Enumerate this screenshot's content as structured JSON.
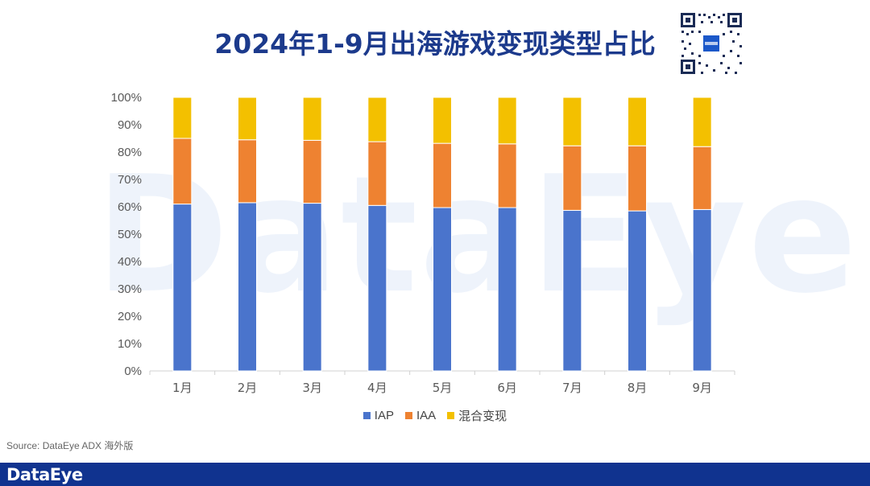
{
  "title": "2024年1-9月出海游戏变现类型占比",
  "watermark": "DataEye",
  "source": "Source: DataEye ADX 海外版",
  "brand": "DataEye",
  "colors": {
    "title": "#1c3a8c",
    "footer": "#10338f",
    "IAP": "#4a74cc",
    "IAA": "#ee8231",
    "mixed": "#f3c000"
  },
  "chart_data": {
    "type": "bar",
    "stacked": true,
    "title": "2024年1-9月出海游戏变现类型占比",
    "categories": [
      "1月",
      "2月",
      "3月",
      "4月",
      "5月",
      "6月",
      "7月",
      "8月",
      "9月"
    ],
    "series": [
      {
        "name": "IAP",
        "color": "#4a74cc",
        "values": [
          61,
          61.5,
          61.3,
          60.5,
          59.7,
          59.7,
          58.7,
          58.5,
          59
        ]
      },
      {
        "name": "IAA",
        "color": "#ee8231",
        "values": [
          24,
          23,
          23,
          23.3,
          23.5,
          23.3,
          23.6,
          23.8,
          23
        ]
      },
      {
        "name": "混合变现",
        "color": "#f3c000",
        "values": [
          15,
          15.5,
          15.7,
          16.2,
          16.8,
          17,
          17.7,
          17.7,
          18
        ]
      }
    ],
    "yticks": [
      "0%",
      "10%",
      "20%",
      "30%",
      "40%",
      "50%",
      "60%",
      "70%",
      "80%",
      "90%",
      "100%"
    ],
    "ylim": [
      0,
      100
    ],
    "xlabel": "",
    "ylabel": "",
    "legend_position": "bottom"
  }
}
